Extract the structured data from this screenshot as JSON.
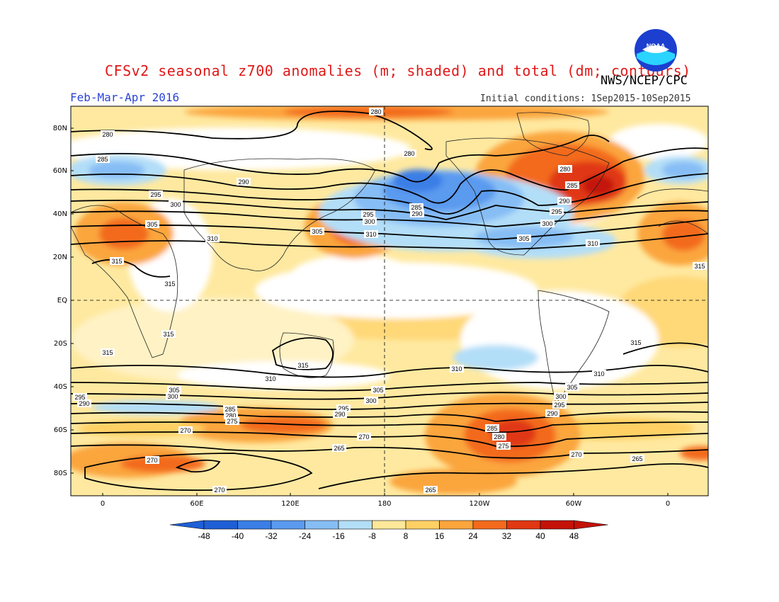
{
  "header": {
    "title": "CFSv2 seasonal z700 anomalies (m; shaded) and total (dm; contours)",
    "agency": "NWS/NCEP/CPC",
    "period": "Feb-Mar-Apr 2016",
    "initial_conditions": "Initial conditions: 1Sep2015-10Sep2015",
    "logo_text": "NOAA"
  },
  "axes": {
    "lat_labels": [
      "80N",
      "60N",
      "40N",
      "20N",
      "EQ",
      "20S",
      "40S",
      "60S",
      "80S"
    ],
    "lon_labels": [
      "0",
      "60E",
      "120E",
      "180",
      "120W",
      "60W",
      "0"
    ]
  },
  "colorbar": {
    "labels": [
      "-48",
      "-40",
      "-32",
      "-24",
      "-16",
      "-8",
      "8",
      "16",
      "24",
      "32",
      "40",
      "48"
    ],
    "colors": [
      "#1f5fd6",
      "#3a7ee6",
      "#5a9aef",
      "#86bdf5",
      "#b3def8",
      "#ffffff",
      "#ffe89a",
      "#ffd064",
      "#fba53c",
      "#f36a1c",
      "#e03812",
      "#c41208"
    ]
  },
  "contour_labels": [
    {
      "text": "280"
    },
    {
      "text": "280"
    },
    {
      "text": "285"
    },
    {
      "text": "290"
    },
    {
      "text": "295"
    },
    {
      "text": "300"
    },
    {
      "text": "305"
    },
    {
      "text": "310"
    },
    {
      "text": "315"
    },
    {
      "text": "315"
    },
    {
      "text": "315"
    },
    {
      "text": "315"
    },
    {
      "text": "280"
    },
    {
      "text": "295"
    },
    {
      "text": "300"
    },
    {
      "text": "305"
    },
    {
      "text": "310"
    },
    {
      "text": "285"
    },
    {
      "text": "290"
    },
    {
      "text": "280"
    },
    {
      "text": "285"
    },
    {
      "text": "290"
    },
    {
      "text": "295"
    },
    {
      "text": "300"
    },
    {
      "text": "305"
    },
    {
      "text": "310"
    },
    {
      "text": "315"
    },
    {
      "text": "315"
    },
    {
      "text": "310"
    },
    {
      "text": "310"
    },
    {
      "text": "310"
    },
    {
      "text": "305"
    },
    {
      "text": "300"
    },
    {
      "text": "295"
    },
    {
      "text": "290"
    },
    {
      "text": "285"
    },
    {
      "text": "280"
    },
    {
      "text": "275"
    },
    {
      "text": "270"
    },
    {
      "text": "270"
    },
    {
      "text": "270"
    },
    {
      "text": "265"
    },
    {
      "text": "305"
    },
    {
      "text": "300"
    },
    {
      "text": "295"
    },
    {
      "text": "290"
    },
    {
      "text": "270"
    },
    {
      "text": "265"
    },
    {
      "text": "285"
    },
    {
      "text": "280"
    },
    {
      "text": "275"
    },
    {
      "text": "305"
    },
    {
      "text": "300"
    },
    {
      "text": "295"
    },
    {
      "text": "290"
    },
    {
      "text": "270"
    },
    {
      "text": "265"
    },
    {
      "text": "315"
    }
  ],
  "map_meta": {
    "domain_lon": "global, centered on 180",
    "guide_lines": [
      "Equator",
      "Dateline"
    ]
  }
}
